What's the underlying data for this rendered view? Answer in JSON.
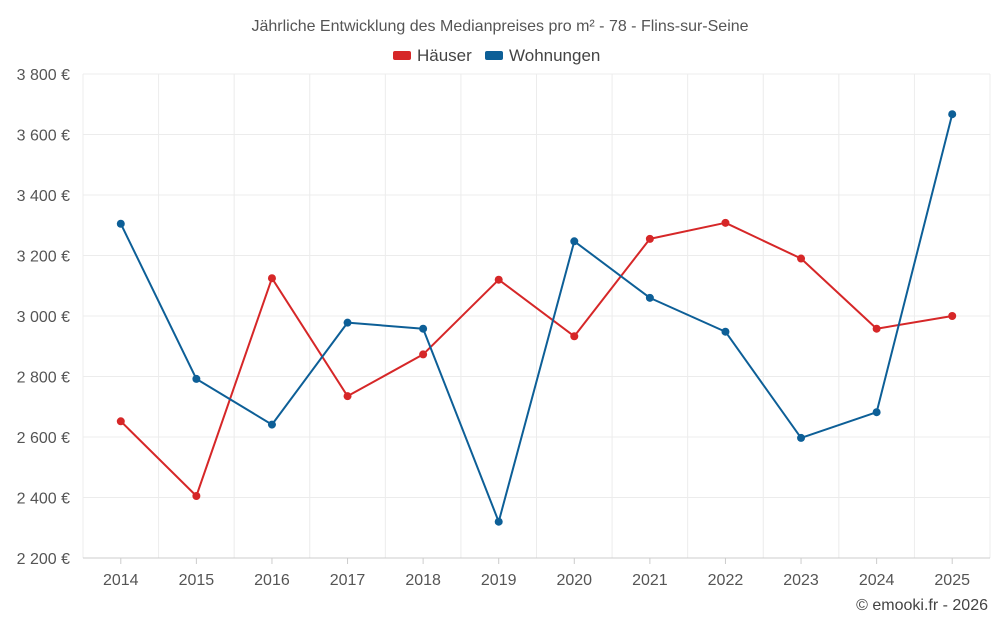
{
  "chart_data": {
    "type": "line",
    "title": "Jährliche Entwicklung des Medianpreises pro m² - 78 - Flins-sur-Seine",
    "categories": [
      "2014",
      "2015",
      "2016",
      "2017",
      "2018",
      "2019",
      "2020",
      "2021",
      "2022",
      "2023",
      "2024",
      "2025"
    ],
    "series": [
      {
        "name": "Häuser",
        "color": "#d62728",
        "values": [
          2652,
          2405,
          3125,
          2735,
          2873,
          3120,
          2933,
          3255,
          3308,
          3190,
          2958,
          3000
        ]
      },
      {
        "name": "Wohnungen",
        "color": "#0d5f97",
        "values": [
          3305,
          2792,
          2641,
          2978,
          2958,
          2320,
          3247,
          3060,
          2948,
          2597,
          2682,
          3667
        ]
      }
    ],
    "ylim": [
      2200,
      3800
    ],
    "yticks": [
      2200,
      2400,
      2600,
      2800,
      3000,
      3200,
      3400,
      3600,
      3800
    ],
    "ytick_labels": [
      "2 200 €",
      "2 400 €",
      "2 600 €",
      "2 800 €",
      "3 000 €",
      "3 200 €",
      "3 400 €",
      "3 600 €",
      "3 800 €"
    ],
    "xlabel": "",
    "ylabel": "",
    "grid": true,
    "legend_position": "top-center"
  },
  "credit": "© emooki.fr - 2026"
}
